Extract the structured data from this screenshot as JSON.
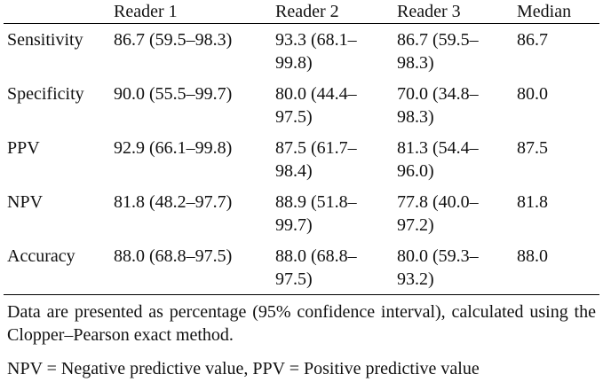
{
  "table": {
    "header": [
      "",
      "Reader 1",
      "Reader 2",
      "Reader 3",
      "Median"
    ],
    "rows": [
      [
        "Sensitivity",
        "86.7 (59.5–98.3)",
        "93.3 (68.1–99.8)",
        "86.7 (59.5–98.3)",
        "86.7"
      ],
      [
        "Specificity",
        "90.0 (55.5–99.7)",
        "80.0 (44.4–97.5)",
        "70.0 (34.8–98.3)",
        "80.0"
      ],
      [
        "PPV",
        "92.9 (66.1–99.8)",
        "87.5 (61.7–98.4)",
        "81.3 (54.4–96.0)",
        "87.5"
      ],
      [
        "NPV",
        "81.8 (48.2–97.7)",
        "88.9 (51.8–99.7)",
        "77.8 (40.0–97.2)",
        "81.8"
      ],
      [
        "Accuracy",
        "88.0 (68.8–97.5)",
        "88.0 (68.8–97.5)",
        "80.0 (59.3–93.2)",
        "88.0"
      ]
    ]
  },
  "footnotes": [
    "Data are presented as percentage (95% confidence interval), calculated using the Clopper–Pearson exact method.",
    "NPV = Negative predictive value, PPV = Positive predictive value"
  ]
}
